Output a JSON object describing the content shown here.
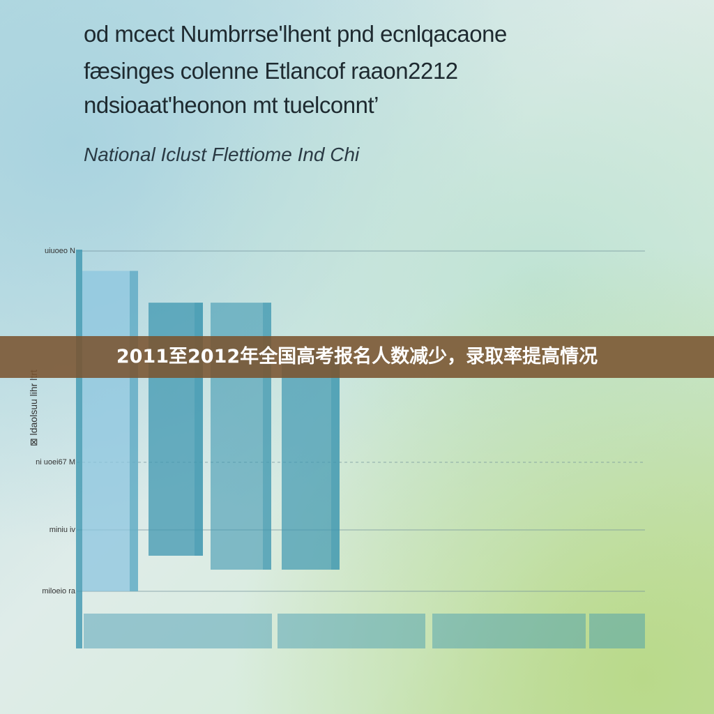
{
  "title_lines": [
    "od mcect Numbrrse'lhent pnd ecnlqacaone",
    "fæsinges colenne Etlancof raaon2212",
    "ndsioaat'heonon mt tuelconnt’"
  ],
  "subtitle": "National Iclust Flettiome Ind Chi",
  "banner": "2011至2012年全国高考报名人数减少，录取率提高情况",
  "colors": {
    "bar_light": "#8cc6df",
    "bar_dark": "#3f97b0",
    "banner": "#7a5430",
    "gridline": "#6f8f99"
  },
  "chart_data": {
    "type": "bar",
    "ytick_labels": [
      "uiuoeo N",
      "ni uoei67 M",
      "miniu iv",
      "miloeio ra"
    ],
    "ylabel": "ldaolsuu  lihr ltrt",
    "legend_marker": "⊠",
    "categories": [
      "",
      "",
      "",
      ""
    ],
    "values": [
      95,
      87,
      87,
      75
    ],
    "ylim": [
      0,
      100
    ],
    "grid": true
  }
}
